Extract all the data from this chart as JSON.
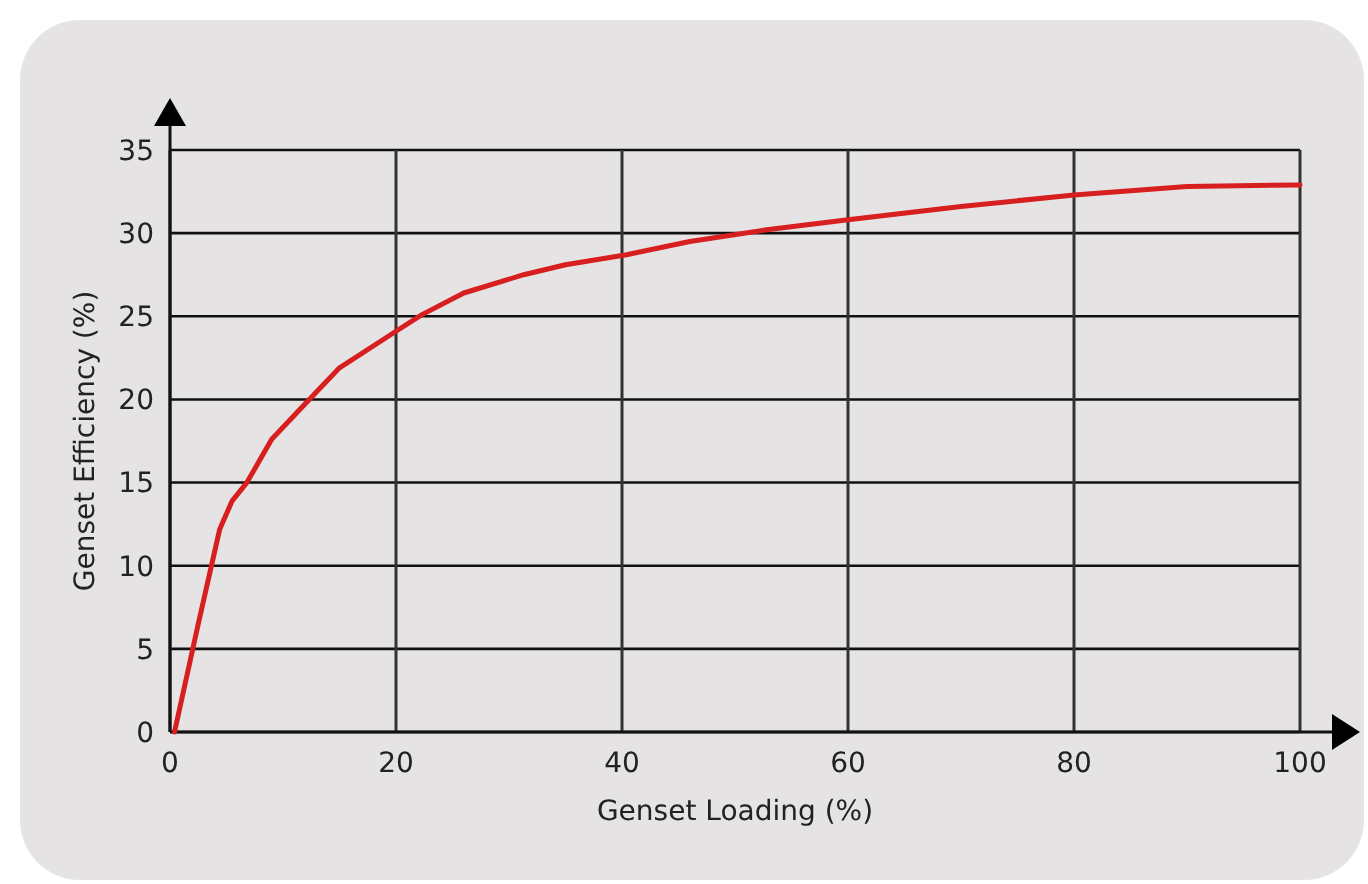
{
  "chart_data": {
    "type": "line",
    "xlabel": "Genset Loading (%)",
    "ylabel": "Genset Efficiency (%)",
    "x": [
      0.4,
      2.5,
      4.4,
      5.5,
      6.8,
      9,
      12.2,
      15,
      20,
      22.3,
      26,
      31.3,
      35,
      40.4,
      46,
      52.8,
      60,
      70,
      80,
      90,
      100
    ],
    "series": [
      {
        "color": "#d71f1f",
        "values": [
          0,
          6.5,
          12.2,
          13.9,
          15,
          17.6,
          19.9,
          21.9,
          24.1,
          25.1,
          26.4,
          27.5,
          28.1,
          28.7,
          29.5,
          30.2,
          30.8,
          31.6,
          32.3,
          32.8,
          32.9
        ]
      }
    ],
    "xlim": [
      0,
      100
    ],
    "ylim": [
      0,
      35
    ],
    "xticks": [
      0,
      20,
      40,
      60,
      80,
      100
    ],
    "yticks": [
      0,
      5,
      10,
      15,
      20,
      25,
      30,
      35
    ],
    "grid": true,
    "marker": "none",
    "line_style": "solid"
  }
}
